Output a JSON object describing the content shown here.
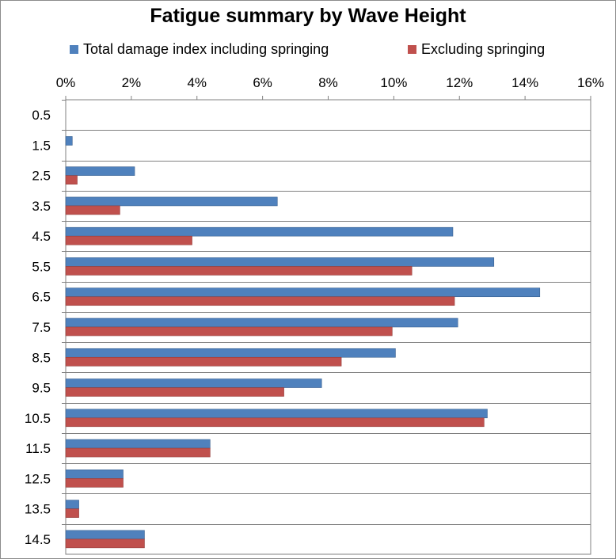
{
  "chart_data": {
    "type": "bar",
    "orientation": "horizontal",
    "title": "Fatigue summary by Wave Height",
    "xlabel": "",
    "ylabel": "",
    "xlim": [
      0,
      16
    ],
    "x_ticks": [
      "0%",
      "2%",
      "4%",
      "6%",
      "8%",
      "10%",
      "12%",
      "14%",
      "16%"
    ],
    "x_axis_position": "top",
    "grid": true,
    "legend_position": "top",
    "categories": [
      "0.5",
      "1.5",
      "2.5",
      "3.5",
      "4.5",
      "5.5",
      "6.5",
      "7.5",
      "8.5",
      "9.5",
      "10.5",
      "11.5",
      "12.5",
      "13.5",
      "14.5"
    ],
    "series": [
      {
        "name": "Total damage index including springing",
        "color": "#4f81bd",
        "values": [
          0.0,
          0.2,
          2.1,
          6.45,
          11.8,
          13.05,
          14.45,
          11.95,
          10.05,
          7.8,
          12.85,
          4.4,
          1.75,
          0.4,
          2.4
        ]
      },
      {
        "name": "Excluding springing",
        "color": "#c0504d",
        "values": [
          0.0,
          0.0,
          0.35,
          1.65,
          3.85,
          10.55,
          11.85,
          9.95,
          8.4,
          6.65,
          12.75,
          4.4,
          1.75,
          0.4,
          2.4
        ]
      }
    ]
  }
}
